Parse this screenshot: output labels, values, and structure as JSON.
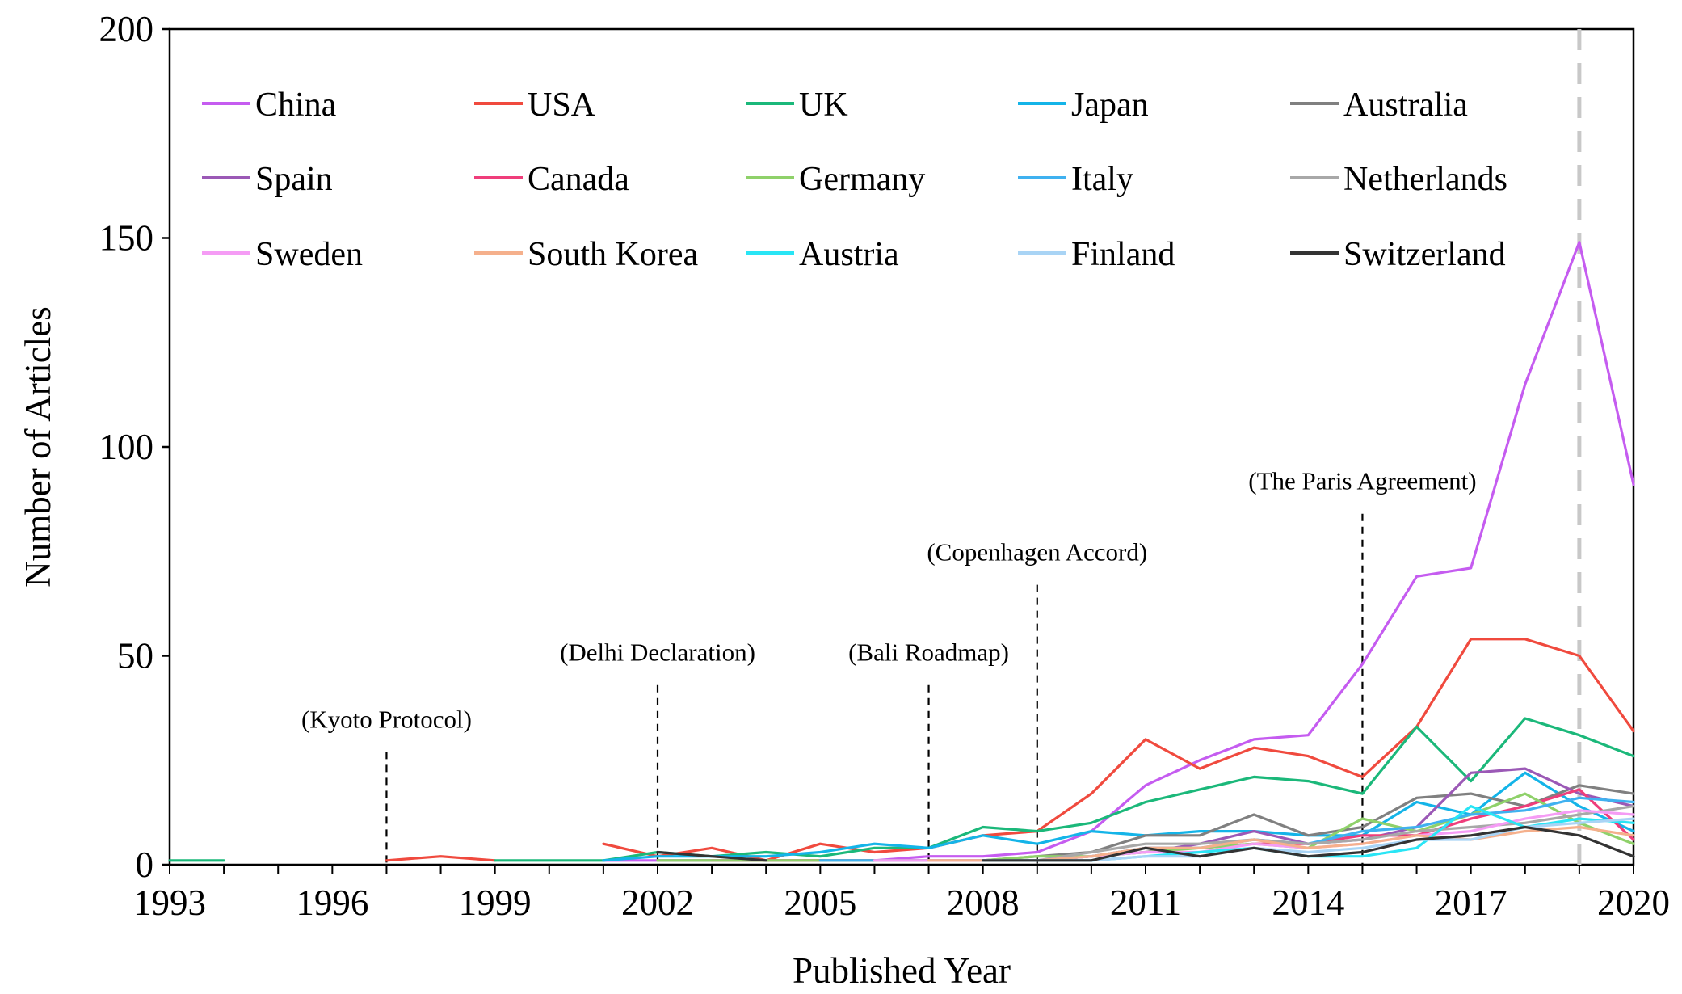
{
  "chart_data": {
    "type": "line",
    "title": "",
    "xlabel": "Published Year",
    "ylabel": "Number of Articles",
    "xlim": [
      1993,
      2020
    ],
    "ylim": [
      0,
      200
    ],
    "x_ticks": [
      "1993",
      "1996",
      "1999",
      "2002",
      "2005",
      "2008",
      "2011",
      "2014",
      "2017",
      "2020"
    ],
    "y_ticks": [
      "0",
      "50",
      "100",
      "150",
      "200"
    ],
    "grid": false,
    "legend_position": "top",
    "x": [
      1993,
      1994,
      1995,
      1996,
      1997,
      1998,
      1999,
      2000,
      2001,
      2002,
      2003,
      2004,
      2005,
      2006,
      2007,
      2008,
      2009,
      2010,
      2011,
      2012,
      2013,
      2014,
      2015,
      2016,
      2017,
      2018,
      2019,
      2020
    ],
    "series": [
      {
        "name": "China",
        "color": "#c55cf0",
        "values": [
          null,
          null,
          null,
          null,
          null,
          null,
          null,
          null,
          1,
          1,
          1,
          1,
          1,
          1,
          2,
          2,
          3,
          8,
          19,
          25,
          30,
          31,
          48,
          69,
          71,
          115,
          149,
          91
        ]
      },
      {
        "name": "USA",
        "color": "#f04a3e",
        "values": [
          null,
          null,
          null,
          null,
          1,
          2,
          1,
          null,
          5,
          2,
          4,
          1,
          5,
          3,
          4,
          7,
          8,
          17,
          30,
          23,
          28,
          26,
          21,
          33,
          54,
          54,
          50,
          32
        ]
      },
      {
        "name": "UK",
        "color": "#1bb87a",
        "values": [
          1,
          1,
          null,
          null,
          null,
          null,
          1,
          1,
          1,
          3,
          2,
          3,
          2,
          4,
          4,
          9,
          8,
          10,
          15,
          18,
          21,
          20,
          17,
          33,
          20,
          35,
          31,
          26
        ]
      },
      {
        "name": "Japan",
        "color": "#14b4e8",
        "values": [
          null,
          null,
          null,
          null,
          null,
          null,
          null,
          null,
          1,
          2,
          2,
          2,
          3,
          5,
          4,
          7,
          5,
          8,
          7,
          8,
          8,
          7,
          7,
          15,
          12,
          22,
          14,
          8
        ]
      },
      {
        "name": "Australia",
        "color": "#808080",
        "values": [
          null,
          null,
          null,
          null,
          null,
          null,
          null,
          null,
          null,
          1,
          1,
          1,
          1,
          1,
          1,
          1,
          2,
          3,
          7,
          7,
          12,
          7,
          9,
          16,
          17,
          14,
          19,
          17
        ]
      },
      {
        "name": "Spain",
        "color": "#9b59b6",
        "values": [
          null,
          null,
          null,
          null,
          null,
          null,
          null,
          null,
          null,
          null,
          null,
          null,
          1,
          1,
          1,
          1,
          1,
          2,
          3,
          5,
          8,
          5,
          6,
          9,
          22,
          23,
          17,
          14
        ]
      },
      {
        "name": "Canada",
        "color": "#ef3e7b",
        "values": [
          null,
          null,
          null,
          null,
          null,
          null,
          null,
          null,
          null,
          null,
          1,
          1,
          1,
          1,
          1,
          1,
          1,
          2,
          4,
          4,
          5,
          5,
          7,
          7,
          11,
          14,
          18,
          6
        ]
      },
      {
        "name": "Germany",
        "color": "#8fd16a",
        "values": [
          null,
          null,
          null,
          null,
          null,
          null,
          null,
          null,
          null,
          1,
          1,
          1,
          1,
          1,
          1,
          1,
          2,
          2,
          3,
          4,
          5,
          4,
          11,
          8,
          12,
          17,
          10,
          5
        ]
      },
      {
        "name": "Italy",
        "color": "#3fb1f0",
        "values": [
          null,
          null,
          null,
          null,
          null,
          null,
          null,
          null,
          null,
          null,
          null,
          null,
          1,
          1,
          1,
          1,
          1,
          2,
          4,
          4,
          6,
          5,
          8,
          9,
          12,
          13,
          16,
          15
        ]
      },
      {
        "name": "Netherlands",
        "color": "#a8a8a8",
        "values": [
          null,
          null,
          null,
          null,
          null,
          null,
          null,
          null,
          null,
          null,
          null,
          null,
          null,
          1,
          1,
          1,
          1,
          3,
          5,
          5,
          6,
          5,
          6,
          8,
          9,
          10,
          12,
          14
        ]
      },
      {
        "name": "Sweden",
        "color": "#f59cf5",
        "values": [
          null,
          null,
          null,
          null,
          null,
          null,
          null,
          null,
          null,
          null,
          null,
          null,
          null,
          1,
          1,
          1,
          1,
          2,
          3,
          3,
          5,
          4,
          5,
          7,
          8,
          11,
          13,
          12
        ]
      },
      {
        "name": "South Korea",
        "color": "#f5b08c",
        "values": [
          null,
          null,
          null,
          null,
          null,
          null,
          null,
          null,
          null,
          null,
          null,
          null,
          null,
          null,
          1,
          1,
          1,
          2,
          4,
          4,
          6,
          4,
          5,
          7,
          6,
          8,
          9,
          7
        ]
      },
      {
        "name": "Austria",
        "color": "#29e5f5",
        "values": [
          null,
          null,
          null,
          null,
          null,
          null,
          null,
          null,
          null,
          null,
          null,
          null,
          null,
          null,
          null,
          1,
          1,
          1,
          2,
          3,
          4,
          2,
          2,
          4,
          14,
          9,
          11,
          10
        ]
      },
      {
        "name": "Finland",
        "color": "#a9d4f5",
        "values": [
          null,
          null,
          null,
          null,
          null,
          null,
          null,
          null,
          null,
          null,
          null,
          null,
          null,
          null,
          null,
          1,
          1,
          1,
          2,
          2,
          4,
          3,
          4,
          6,
          6,
          9,
          10,
          11
        ]
      },
      {
        "name": "Switzerland",
        "color": "#333333",
        "values": [
          null,
          null,
          null,
          null,
          null,
          null,
          null,
          null,
          null,
          3,
          2,
          1,
          null,
          null,
          null,
          1,
          1,
          1,
          4,
          2,
          4,
          2,
          3,
          6,
          7,
          9,
          7,
          2
        ]
      }
    ],
    "annotations": [
      {
        "label": "(Kyoto Protocol)",
        "x": 1997,
        "y_top": 27
      },
      {
        "label": "(Delhi Declaration)",
        "x": 2002,
        "y_top": 43
      },
      {
        "label": "(Bali Roadmap)",
        "x": 2007,
        "y_top": 43
      },
      {
        "label": "(Copenhagen Accord)",
        "x": 2009,
        "y_top": 67
      },
      {
        "label": "(The Paris Agreement)",
        "x": 2015,
        "y_top": 84
      }
    ],
    "reference_line": {
      "x": 2019,
      "style": "dashed",
      "color": "#c8c8c8"
    }
  }
}
